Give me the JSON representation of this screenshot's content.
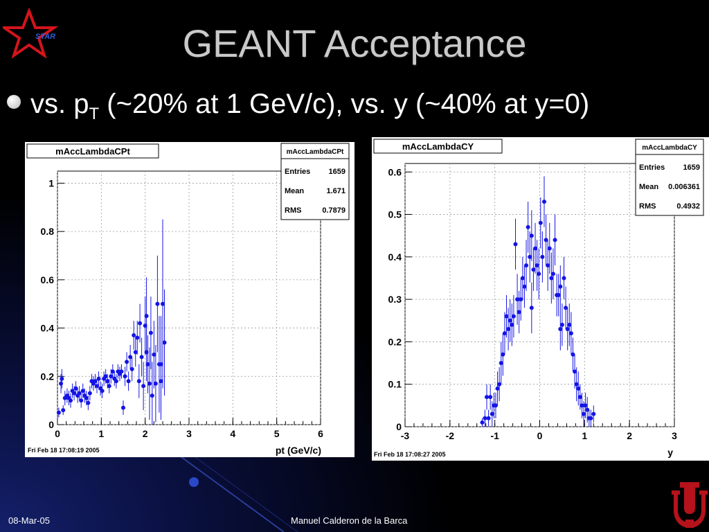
{
  "slide": {
    "title": "GEANT Acceptance",
    "bullet_prefix": "vs. p",
    "bullet_sub": "T",
    "bullet_rest": " (~20% at 1 GeV/c), vs. y (~40% at y=0)",
    "logo_text": "STAR",
    "footer_date": "08-Mar-05",
    "footer_author": "Manuel Calderon de la Barca"
  },
  "chart_data": [
    {
      "type": "scatter",
      "name": "mAccLambdaCPt",
      "title": "mAccLambdaCPt",
      "xlabel": "pt (GeV/c)",
      "ylabel": "",
      "xlim": [
        0,
        6
      ],
      "ylim": [
        0,
        1.05
      ],
      "xticks": [
        "0",
        "1",
        "2",
        "3",
        "4",
        "5",
        "6"
      ],
      "yticks": [
        "0",
        "0.2",
        "0.4",
        "0.6",
        "0.8",
        "1"
      ],
      "grid": true,
      "stats": {
        "title": "mAccLambdaCPt",
        "rows": [
          [
            "Entries",
            "1659"
          ],
          [
            "Mean",
            "1.671"
          ],
          [
            "RMS",
            "0.7879"
          ]
        ]
      },
      "timestamp": "Fri Feb 18 17:08:19 2005",
      "points": [
        [
          0.03,
          0.05,
          0.02
        ],
        [
          0.08,
          0.17,
          0.04
        ],
        [
          0.1,
          0.19,
          0.04
        ],
        [
          0.13,
          0.06,
          0.02
        ],
        [
          0.17,
          0.11,
          0.03
        ],
        [
          0.22,
          0.12,
          0.03
        ],
        [
          0.26,
          0.11,
          0.03
        ],
        [
          0.3,
          0.1,
          0.03
        ],
        [
          0.34,
          0.14,
          0.03
        ],
        [
          0.38,
          0.13,
          0.03
        ],
        [
          0.42,
          0.15,
          0.03
        ],
        [
          0.46,
          0.12,
          0.03
        ],
        [
          0.5,
          0.13,
          0.03
        ],
        [
          0.54,
          0.1,
          0.03
        ],
        [
          0.58,
          0.14,
          0.03
        ],
        [
          0.62,
          0.12,
          0.03
        ],
        [
          0.66,
          0.11,
          0.03
        ],
        [
          0.7,
          0.09,
          0.03
        ],
        [
          0.74,
          0.13,
          0.03
        ],
        [
          0.78,
          0.18,
          0.03
        ],
        [
          0.82,
          0.17,
          0.03
        ],
        [
          0.86,
          0.18,
          0.03
        ],
        [
          0.9,
          0.16,
          0.03
        ],
        [
          0.94,
          0.19,
          0.03
        ],
        [
          0.98,
          0.15,
          0.03
        ],
        [
          1.02,
          0.14,
          0.03
        ],
        [
          1.06,
          0.19,
          0.03
        ],
        [
          1.1,
          0.2,
          0.03
        ],
        [
          1.14,
          0.18,
          0.03
        ],
        [
          1.18,
          0.16,
          0.03
        ],
        [
          1.22,
          0.2,
          0.03
        ],
        [
          1.26,
          0.22,
          0.03
        ],
        [
          1.3,
          0.19,
          0.03
        ],
        [
          1.34,
          0.18,
          0.03
        ],
        [
          1.38,
          0.22,
          0.03
        ],
        [
          1.42,
          0.21,
          0.03
        ],
        [
          1.46,
          0.22,
          0.03
        ],
        [
          1.5,
          0.07,
          0.03
        ],
        [
          1.54,
          0.2,
          0.04
        ],
        [
          1.58,
          0.26,
          0.04
        ],
        [
          1.62,
          0.18,
          0.04
        ],
        [
          1.66,
          0.28,
          0.05
        ],
        [
          1.7,
          0.23,
          0.05
        ],
        [
          1.74,
          0.37,
          0.06
        ],
        [
          1.78,
          0.3,
          0.06
        ],
        [
          1.82,
          0.36,
          0.07
        ],
        [
          1.86,
          0.18,
          0.07
        ],
        [
          1.88,
          0.42,
          0.08
        ],
        [
          1.92,
          0.28,
          0.08
        ],
        [
          1.96,
          0.16,
          0.1
        ],
        [
          2.0,
          0.41,
          0.12
        ],
        [
          2.03,
          0.3,
          0.12
        ],
        [
          2.06,
          0.25,
          0.12
        ],
        [
          2.1,
          0.17,
          0.15
        ],
        [
          2.13,
          0.38,
          0.15
        ],
        [
          2.16,
          0.12,
          0.14
        ],
        [
          2.2,
          0.29,
          0.14
        ],
        [
          2.24,
          0.17,
          0.16
        ],
        [
          2.28,
          0.5,
          0.2
        ],
        [
          2.32,
          0.25,
          0.2
        ],
        [
          2.36,
          0.18,
          0.16
        ],
        [
          2.4,
          0.5,
          0.35
        ],
        [
          2.44,
          0.34,
          0.22
        ],
        [
          2.03,
          0.45,
          0.16
        ],
        [
          2.36,
          0.25,
          0.2
        ]
      ]
    },
    {
      "type": "scatter",
      "name": "mAccLambdaCY",
      "title": "mAccLambdaCY",
      "xlabel": "y",
      "ylabel": "",
      "xlim": [
        -3,
        3
      ],
      "ylim": [
        0,
        0.62
      ],
      "xticks": [
        "-3",
        "-2",
        "-1",
        "0",
        "1",
        "2",
        "3"
      ],
      "yticks": [
        "0",
        "0.1",
        "0.2",
        "0.3",
        "0.4",
        "0.5",
        "0.6"
      ],
      "grid": true,
      "stats": {
        "title": "mAccLambdaCY",
        "rows": [
          [
            "Entries",
            "1659"
          ],
          [
            "Mean",
            "0.006361"
          ],
          [
            "RMS",
            "0.4932"
          ]
        ]
      },
      "timestamp": "Fri Feb 18 17:08:27 2005",
      "points": [
        [
          -1.28,
          0.01,
          0.01
        ],
        [
          -1.22,
          0.02,
          0.02
        ],
        [
          -1.18,
          0.07,
          0.03
        ],
        [
          -1.14,
          0.02,
          0.02
        ],
        [
          -1.1,
          0.07,
          0.03
        ],
        [
          -1.06,
          0.03,
          0.03
        ],
        [
          -1.02,
          0.05,
          0.03
        ],
        [
          -0.98,
          0.05,
          0.03
        ],
        [
          -0.94,
          0.09,
          0.04
        ],
        [
          -0.9,
          0.1,
          0.04
        ],
        [
          -0.86,
          0.15,
          0.05
        ],
        [
          -0.82,
          0.17,
          0.05
        ],
        [
          -0.78,
          0.22,
          0.05
        ],
        [
          -0.74,
          0.26,
          0.05
        ],
        [
          -0.7,
          0.23,
          0.05
        ],
        [
          -0.66,
          0.25,
          0.05
        ],
        [
          -0.62,
          0.24,
          0.05
        ],
        [
          -0.58,
          0.26,
          0.05
        ],
        [
          -0.54,
          0.43,
          0.06
        ],
        [
          -0.5,
          0.3,
          0.06
        ],
        [
          -0.46,
          0.27,
          0.05
        ],
        [
          -0.42,
          0.3,
          0.05
        ],
        [
          -0.38,
          0.35,
          0.05
        ],
        [
          -0.34,
          0.33,
          0.05
        ],
        [
          -0.3,
          0.38,
          0.06
        ],
        [
          -0.26,
          0.47,
          0.06
        ],
        [
          -0.22,
          0.4,
          0.06
        ],
        [
          -0.18,
          0.45,
          0.06
        ],
        [
          -0.14,
          0.37,
          0.05
        ],
        [
          -0.1,
          0.42,
          0.06
        ],
        [
          -0.06,
          0.38,
          0.06
        ],
        [
          -0.02,
          0.36,
          0.06
        ],
        [
          0.02,
          0.48,
          0.06
        ],
        [
          0.06,
          0.4,
          0.06
        ],
        [
          0.1,
          0.53,
          0.06
        ],
        [
          0.14,
          0.44,
          0.06
        ],
        [
          0.18,
          0.38,
          0.06
        ],
        [
          0.22,
          0.42,
          0.06
        ],
        [
          0.26,
          0.35,
          0.06
        ],
        [
          0.3,
          0.36,
          0.06
        ],
        [
          0.34,
          0.44,
          0.06
        ],
        [
          0.38,
          0.31,
          0.05
        ],
        [
          0.42,
          0.31,
          0.05
        ],
        [
          0.46,
          0.33,
          0.05
        ],
        [
          0.5,
          0.24,
          0.05
        ],
        [
          0.54,
          0.35,
          0.05
        ],
        [
          0.58,
          0.28,
          0.05
        ],
        [
          0.62,
          0.23,
          0.05
        ],
        [
          0.66,
          0.24,
          0.05
        ],
        [
          0.7,
          0.22,
          0.05
        ],
        [
          0.74,
          0.17,
          0.04
        ],
        [
          0.78,
          0.13,
          0.04
        ],
        [
          0.82,
          0.1,
          0.04
        ],
        [
          0.86,
          0.09,
          0.04
        ],
        [
          0.9,
          0.07,
          0.03
        ],
        [
          0.94,
          0.05,
          0.03
        ],
        [
          0.98,
          0.03,
          0.03
        ],
        [
          1.02,
          0.05,
          0.03
        ],
        [
          1.06,
          0.04,
          0.03
        ],
        [
          1.1,
          0.02,
          0.02
        ],
        [
          1.14,
          0.02,
          0.02
        ],
        [
          1.2,
          0.03,
          0.02
        ],
        [
          -0.18,
          0.28,
          0.06
        ],
        [
          0.46,
          0.23,
          0.05
        ]
      ]
    }
  ]
}
